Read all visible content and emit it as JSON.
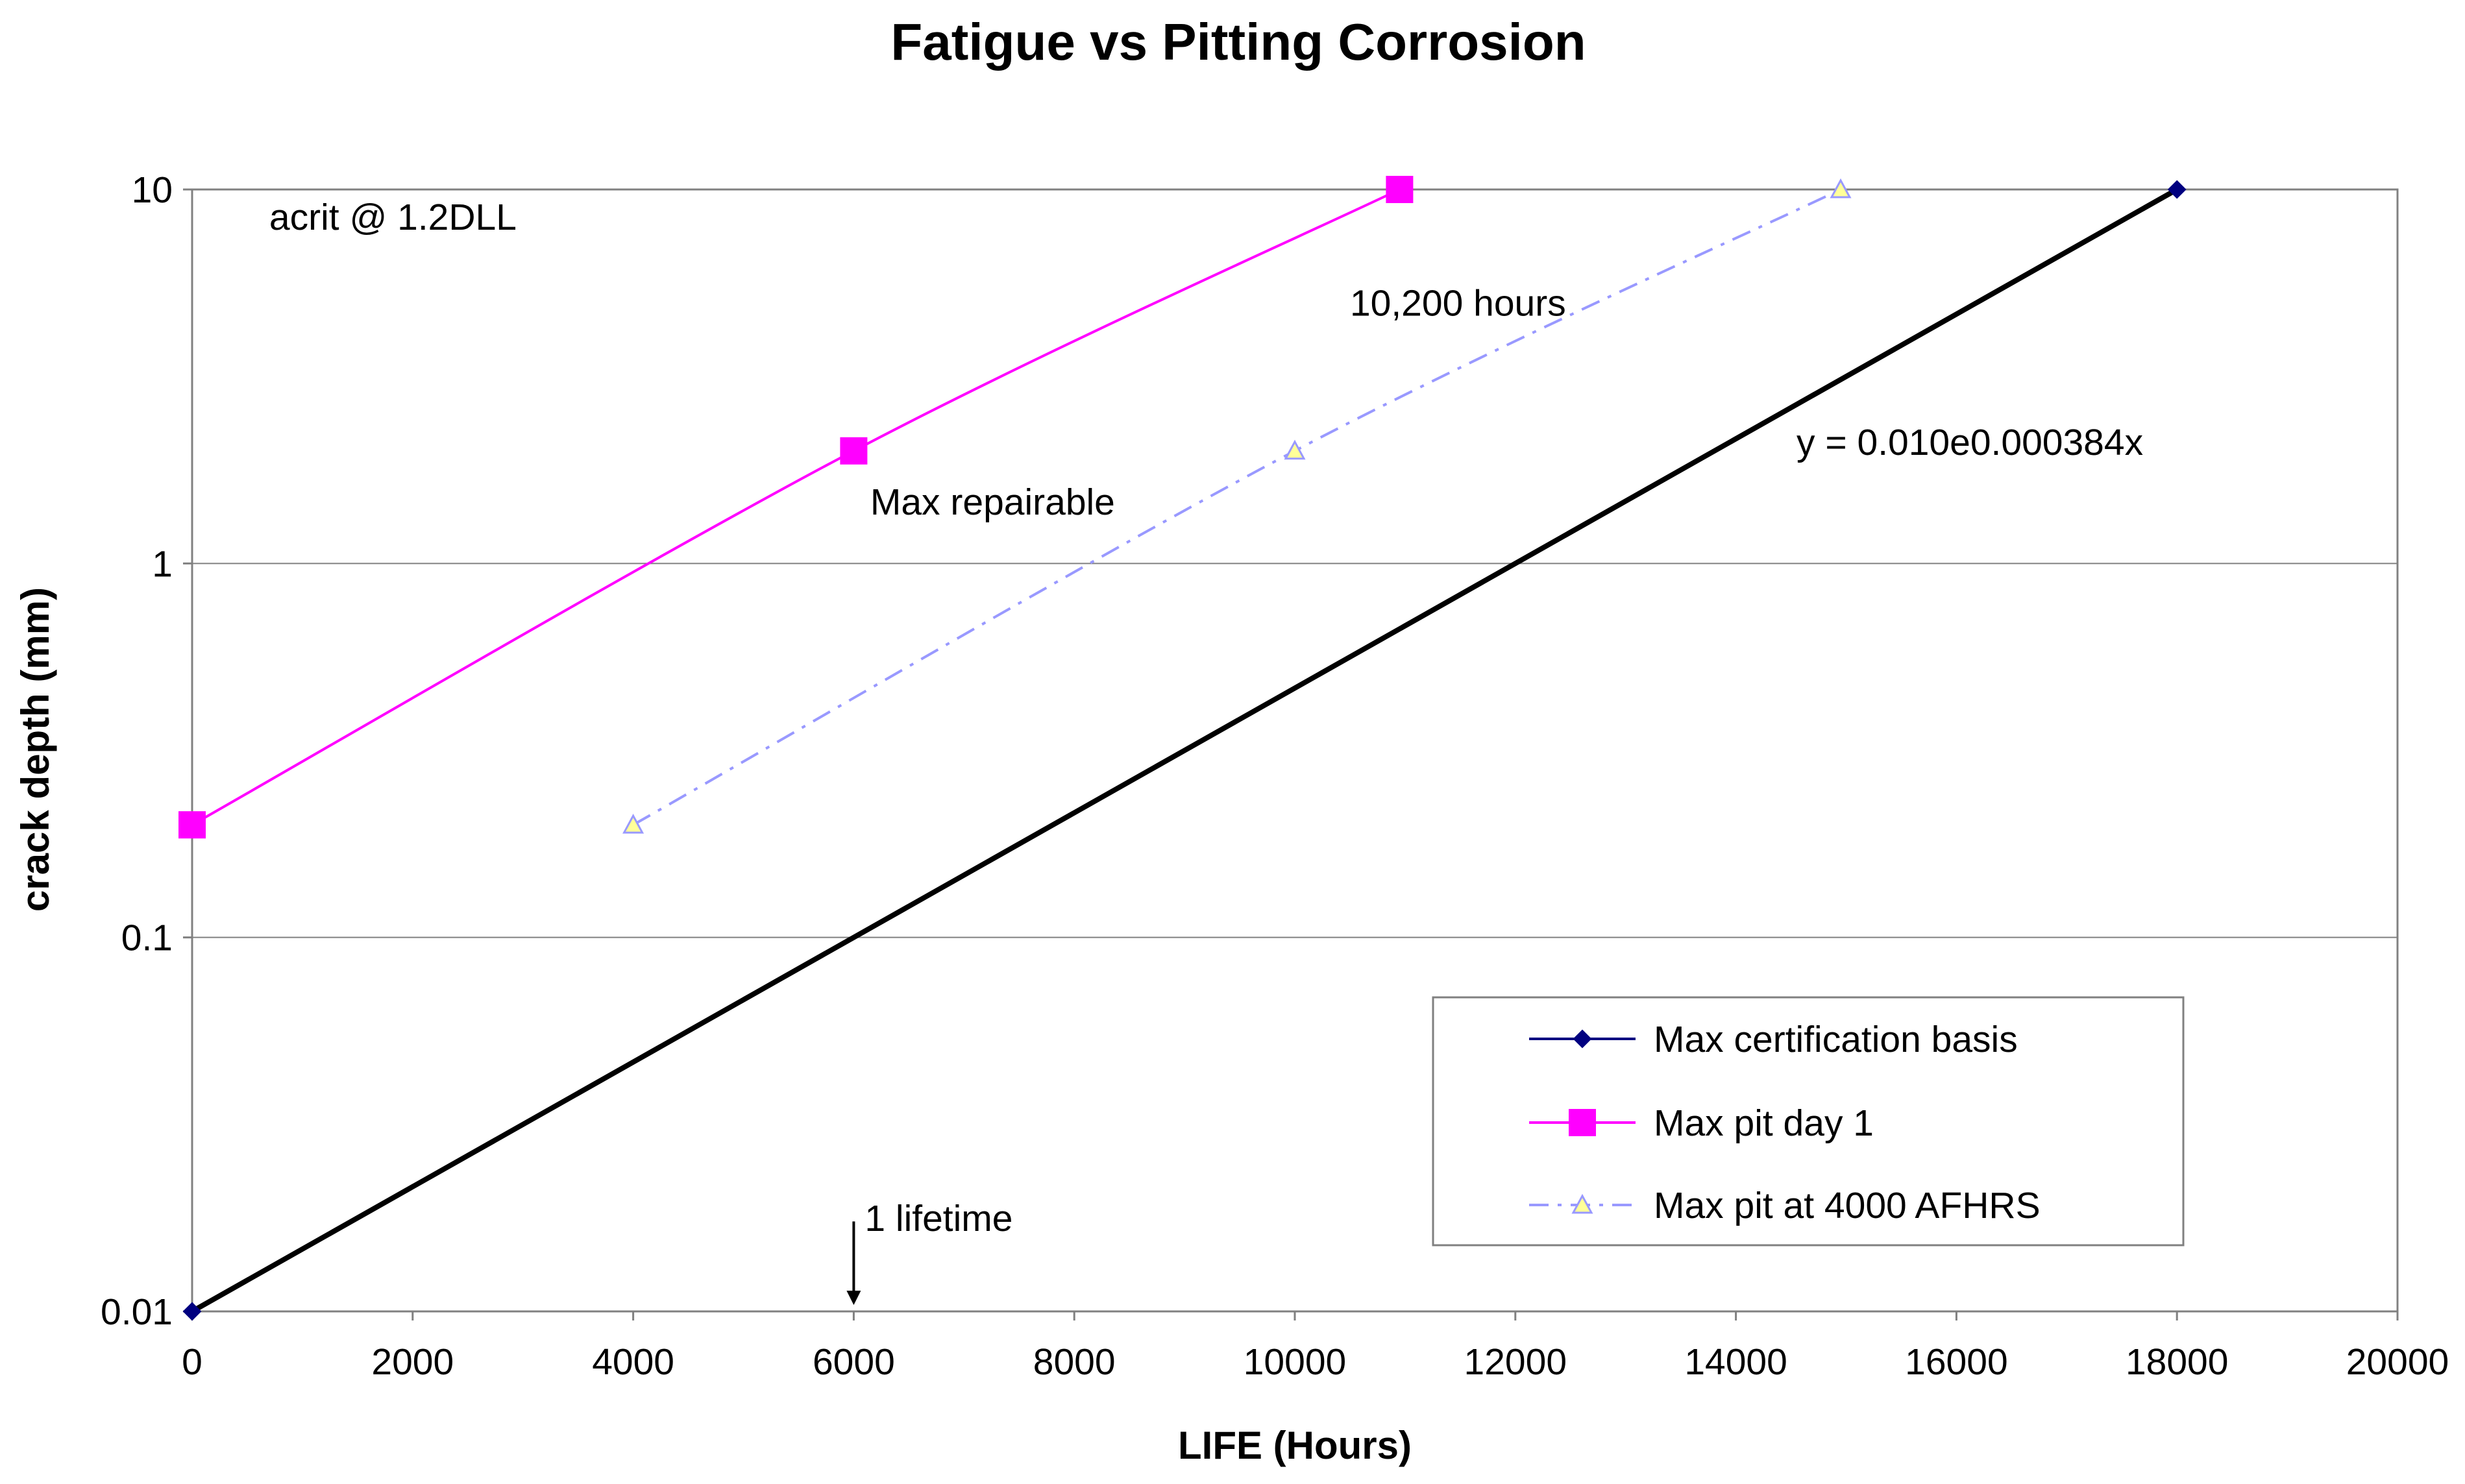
{
  "chart_data": {
    "type": "line",
    "title": "Fatigue vs Pitting Corrosion",
    "xlabel": "LIFE (Hours)",
    "ylabel": "crack depth (mm)",
    "xlim": [
      0,
      20000
    ],
    "ylim": [
      0.01,
      10
    ],
    "yscale": "log",
    "x_ticks": [
      0,
      2000,
      4000,
      6000,
      8000,
      10000,
      12000,
      14000,
      16000,
      18000,
      20000
    ],
    "x_tick_labels": [
      "0",
      "2000",
      "4000",
      "6000",
      "8000",
      "10000",
      "12000",
      "14000",
      "16000",
      "18000",
      "20000"
    ],
    "y_ticks": [
      0.01,
      0.1,
      1,
      10
    ],
    "y_tick_labels": [
      "0.01",
      "0.1",
      "1",
      "10"
    ],
    "grid": "horizontal",
    "legend_position": "bottom-right",
    "series": [
      {
        "name": "Max certification basis",
        "color": "#000080",
        "line_color": "#000000",
        "marker": "diamond",
        "style": "solid-thick",
        "points": [
          [
            0,
            0.01
          ],
          [
            18000,
            10
          ]
        ]
      },
      {
        "name": "Max pit day 1",
        "color": "#ff00ff",
        "line_color": "#ff00ff",
        "marker": "square",
        "style": "solid",
        "points": [
          [
            0,
            0.2
          ],
          [
            6000,
            2
          ],
          [
            10950,
            10
          ]
        ]
      },
      {
        "name": "Max pit at 4000 AFHRS",
        "color": "#9999ff",
        "line_color": "#9999ff",
        "marker": "triangle",
        "marker_fill": "#ffff99",
        "style": "dash-dot",
        "points": [
          [
            4000,
            0.2
          ],
          [
            10000,
            2
          ],
          [
            14950,
            10
          ]
        ]
      }
    ],
    "annotations": [
      {
        "text": "acrit @ 1.2DLL",
        "x": 700,
        "y": 7.8
      },
      {
        "text": "10,200 hours",
        "x": 10500,
        "y": 4.6
      },
      {
        "text": "y = 0.010e0.000384x",
        "x": 14550,
        "y": 1.95
      },
      {
        "text": "Max repairable",
        "x": 6150,
        "y": 1.35
      },
      {
        "text": "1 lifetime",
        "x": 6100,
        "y": 0.0164
      }
    ],
    "arrow": {
      "x": 6000,
      "y_from": 0.0174,
      "y_to": 0.0104
    }
  }
}
